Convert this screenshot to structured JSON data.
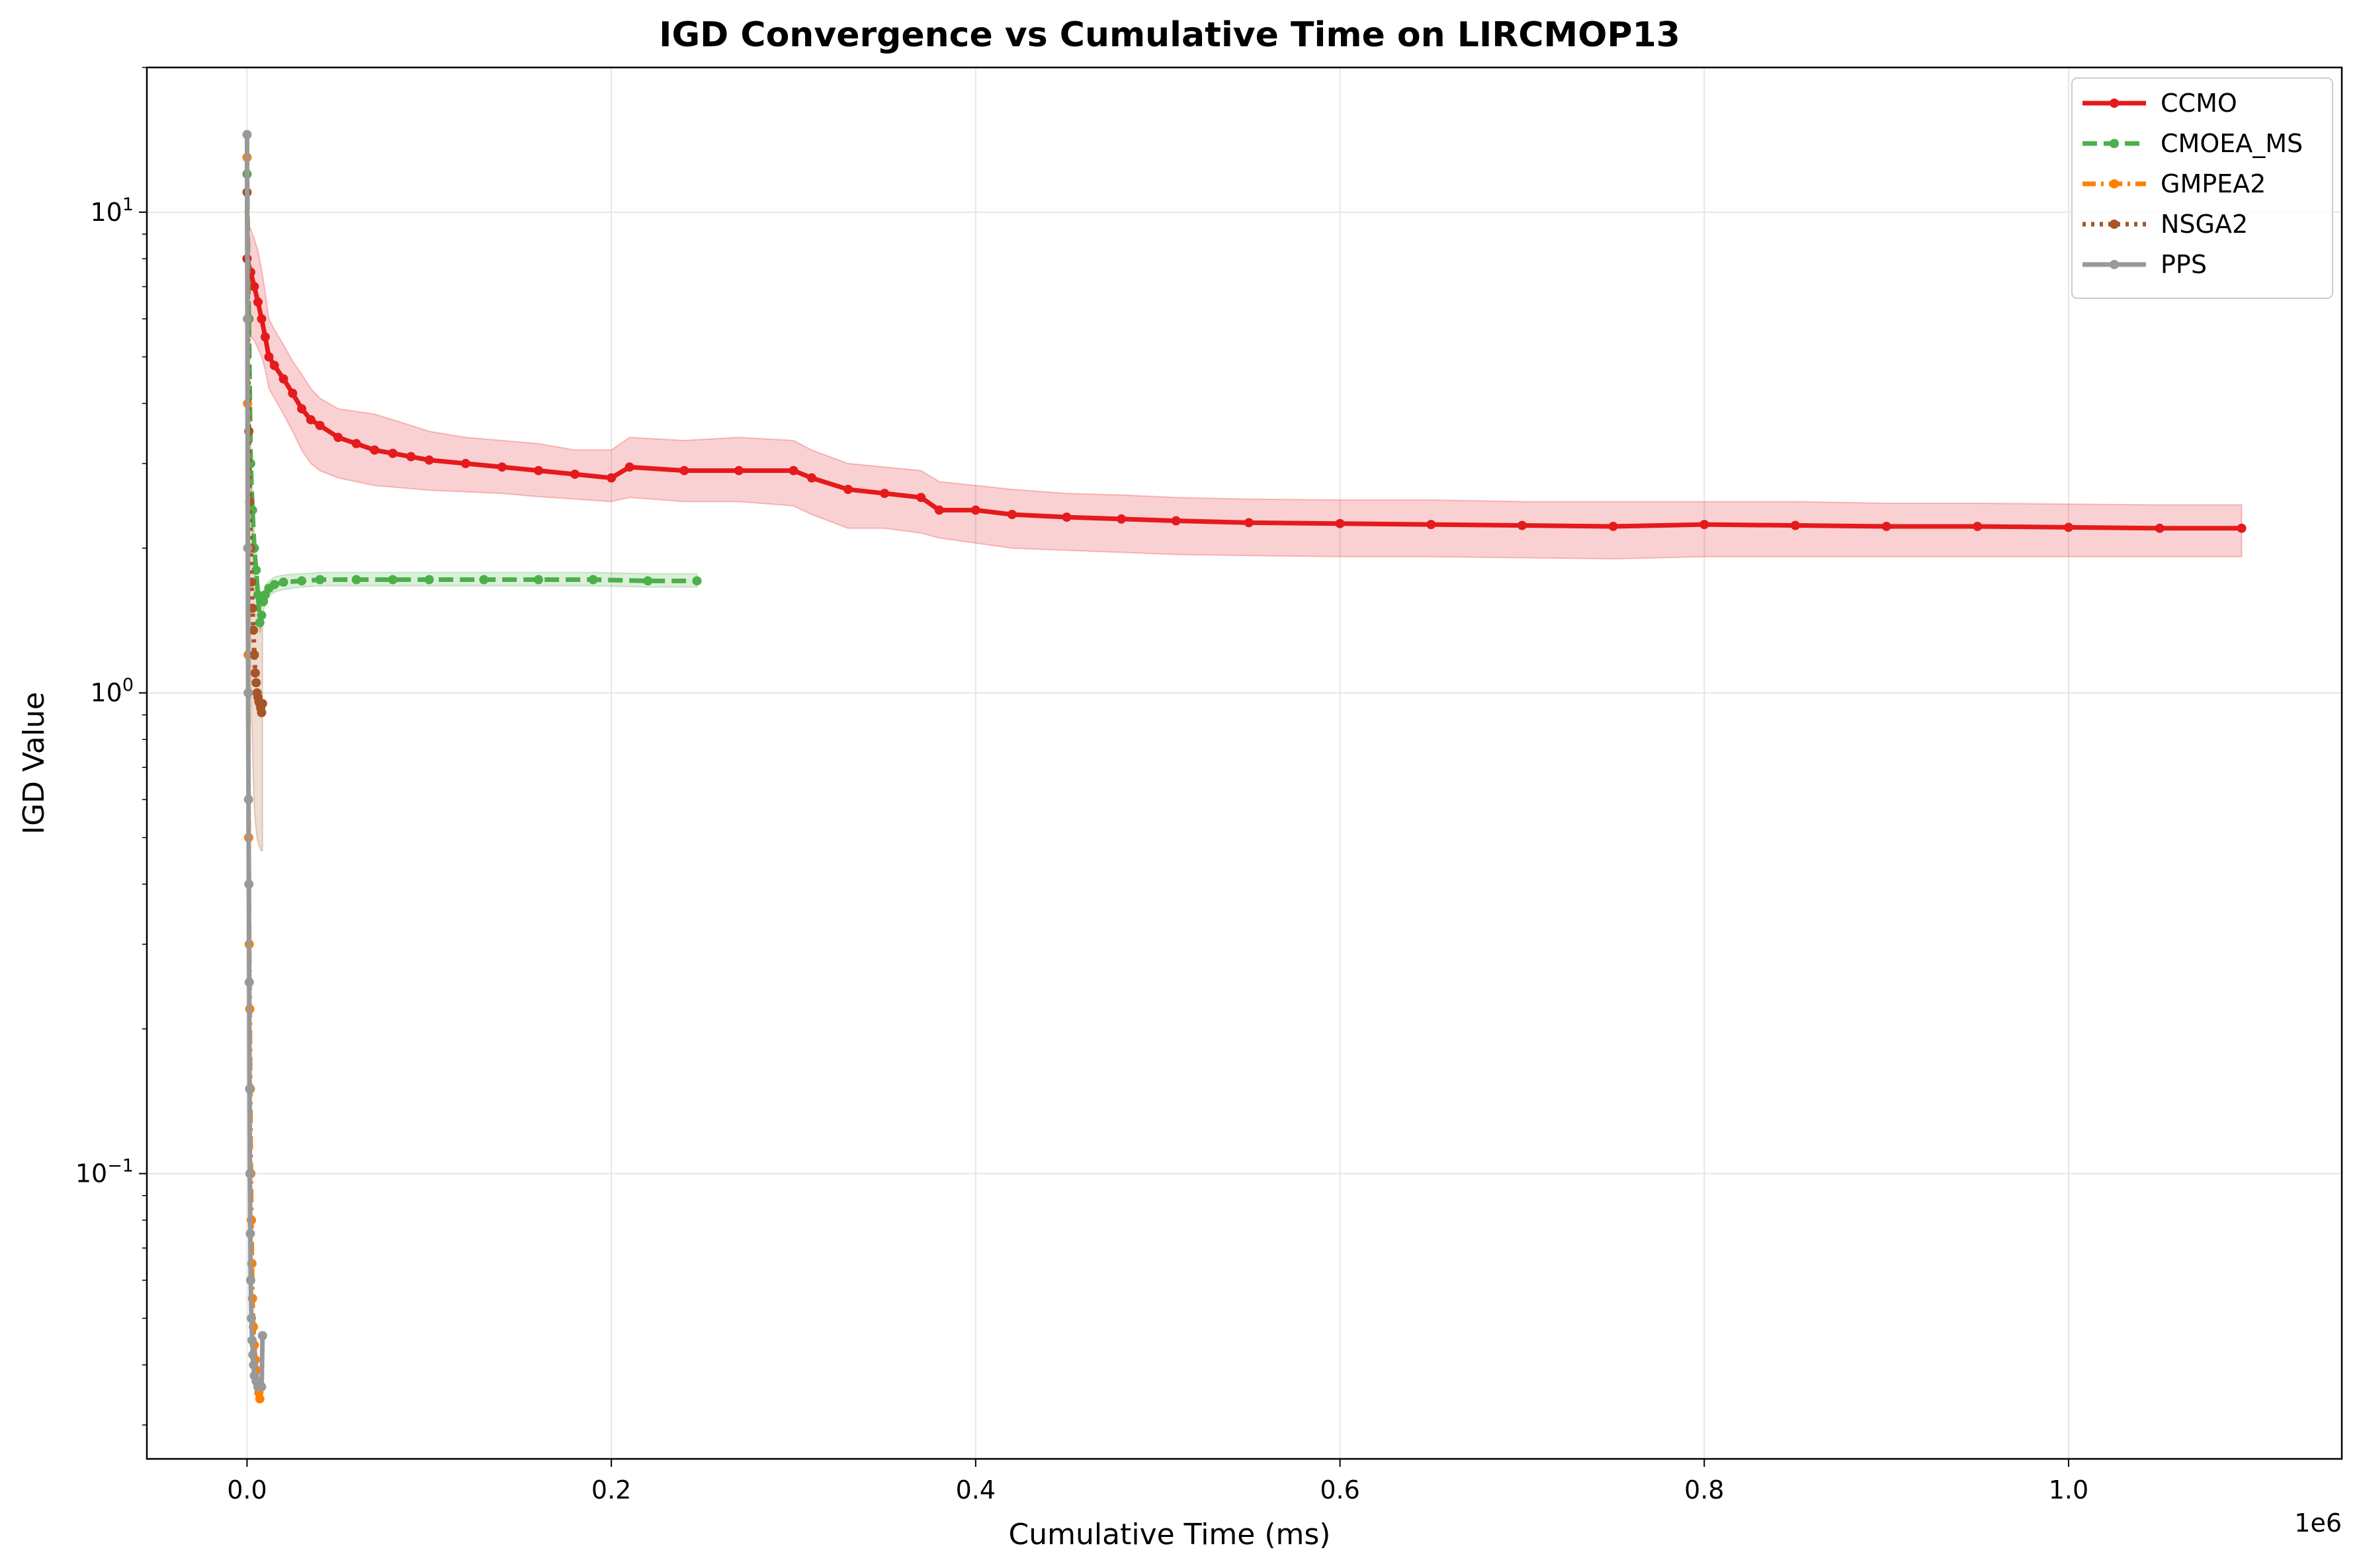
{
  "chart_data": {
    "type": "line",
    "title": "IGD Convergence vs Cumulative Time on LIRCMOP13",
    "xlabel": "Cumulative Time (ms)",
    "ylabel": "IGD Value",
    "x_offset_label": "1e6",
    "x_scale_factor": 1000000,
    "xlim": [
      -55000,
      1150000
    ],
    "ylim": [
      0.0255,
      20
    ],
    "yscale": "log",
    "grid": true,
    "legend_placement": "top-right",
    "x_ticks": [
      {
        "value": 0,
        "label": "0.0"
      },
      {
        "value": 200000,
        "label": "0.2"
      },
      {
        "value": 400000,
        "label": "0.4"
      },
      {
        "value": 600000,
        "label": "0.6"
      },
      {
        "value": 800000,
        "label": "0.8"
      },
      {
        "value": 1000000,
        "label": "1.0"
      }
    ],
    "y_ticks": [
      {
        "value": 0.1,
        "base": "10",
        "exp": "−1"
      },
      {
        "value": 1,
        "base": "10",
        "exp": "0"
      },
      {
        "value": 10,
        "base": "10",
        "exp": "1"
      }
    ],
    "series": [
      {
        "name": "CCMO",
        "color": "#e41a1c",
        "dash": "solid",
        "x": [
          0,
          2000,
          4000,
          6000,
          8000,
          10000,
          12000,
          15000,
          20000,
          25000,
          30000,
          35000,
          40000,
          50000,
          60000,
          70000,
          80000,
          90000,
          100000,
          120000,
          140000,
          160000,
          180000,
          200000,
          210000,
          240000,
          270000,
          300000,
          310000,
          330000,
          350000,
          370000,
          380000,
          400000,
          420000,
          450000,
          480000,
          510000,
          550000,
          600000,
          650000,
          700000,
          750000,
          800000,
          850000,
          900000,
          950000,
          1000000,
          1050000,
          1095000
        ],
        "y": [
          8.0,
          7.5,
          7.0,
          6.5,
          6.0,
          5.5,
          5.0,
          4.8,
          4.5,
          4.2,
          3.9,
          3.7,
          3.6,
          3.4,
          3.3,
          3.2,
          3.15,
          3.1,
          3.05,
          3.0,
          2.95,
          2.9,
          2.85,
          2.8,
          2.95,
          2.9,
          2.9,
          2.9,
          2.8,
          2.65,
          2.6,
          2.55,
          2.4,
          2.4,
          2.35,
          2.32,
          2.3,
          2.28,
          2.26,
          2.25,
          2.24,
          2.23,
          2.22,
          2.24,
          2.23,
          2.22,
          2.22,
          2.21,
          2.2,
          2.2
        ],
        "band_lower": [
          5.5,
          5.5,
          5.4,
          5.2,
          5.0,
          4.7,
          4.3,
          4.1,
          3.8,
          3.5,
          3.2,
          3.0,
          2.9,
          2.8,
          2.75,
          2.7,
          2.68,
          2.66,
          2.64,
          2.62,
          2.6,
          2.56,
          2.53,
          2.5,
          2.55,
          2.5,
          2.5,
          2.45,
          2.35,
          2.2,
          2.2,
          2.15,
          2.1,
          2.05,
          2.0,
          1.98,
          1.96,
          1.94,
          1.93,
          1.92,
          1.92,
          1.91,
          1.9,
          1.92,
          1.92,
          1.92,
          1.92,
          1.92,
          1.92,
          1.92
        ],
        "band_upper": [
          9.5,
          9.2,
          8.8,
          8.3,
          7.6,
          6.8,
          6.0,
          5.7,
          5.3,
          4.9,
          4.6,
          4.3,
          4.1,
          3.9,
          3.85,
          3.8,
          3.7,
          3.6,
          3.5,
          3.4,
          3.35,
          3.3,
          3.2,
          3.2,
          3.4,
          3.35,
          3.4,
          3.35,
          3.2,
          3.0,
          2.95,
          2.9,
          2.75,
          2.7,
          2.65,
          2.6,
          2.58,
          2.55,
          2.53,
          2.52,
          2.52,
          2.5,
          2.5,
          2.5,
          2.5,
          2.48,
          2.48,
          2.47,
          2.46,
          2.46
        ]
      },
      {
        "name": "CMOEA_MS",
        "color": "#4daf4a",
        "dash": "dashed",
        "x": [
          0,
          1000,
          2000,
          3000,
          4000,
          5000,
          6000,
          7000,
          8000,
          9000,
          10000,
          12000,
          15000,
          20000,
          30000,
          40000,
          60000,
          80000,
          100000,
          130000,
          160000,
          190000,
          220000,
          247000
        ],
        "y": [
          12.0,
          6.0,
          3.0,
          2.4,
          2.0,
          1.8,
          1.6,
          1.4,
          1.45,
          1.55,
          1.6,
          1.65,
          1.68,
          1.7,
          1.71,
          1.72,
          1.72,
          1.72,
          1.72,
          1.72,
          1.72,
          1.72,
          1.71,
          1.71
        ],
        "band_lower": [
          11.0,
          5.4,
          2.7,
          2.2,
          1.85,
          1.68,
          1.5,
          1.33,
          1.38,
          1.48,
          1.54,
          1.59,
          1.62,
          1.64,
          1.66,
          1.67,
          1.67,
          1.67,
          1.67,
          1.67,
          1.67,
          1.67,
          1.66,
          1.66
        ],
        "band_upper": [
          13.0,
          6.6,
          3.3,
          2.6,
          2.15,
          1.93,
          1.72,
          1.48,
          1.52,
          1.62,
          1.67,
          1.71,
          1.74,
          1.76,
          1.77,
          1.78,
          1.78,
          1.78,
          1.78,
          1.78,
          1.78,
          1.78,
          1.77,
          1.77
        ]
      },
      {
        "name": "GMPEA2",
        "color": "#ff7f00",
        "dash": "dashdot",
        "x": [
          0,
          300,
          600,
          900,
          1200,
          1500,
          1800,
          2100,
          2400,
          2700,
          3000,
          3500,
          4000,
          4500,
          5000,
          5500,
          6000,
          6500,
          7000
        ],
        "y": [
          13.0,
          4.0,
          1.2,
          0.5,
          0.3,
          0.22,
          0.15,
          0.1,
          0.08,
          0.065,
          0.055,
          0.048,
          0.044,
          0.041,
          0.039,
          0.037,
          0.036,
          0.035,
          0.034
        ]
      },
      {
        "name": "NSGA2",
        "color": "#a65628",
        "dash": "dotted",
        "x": [
          0,
          500,
          1000,
          1500,
          2000,
          2500,
          3000,
          3500,
          4000,
          4500,
          5000,
          5500,
          6000,
          6500,
          7000,
          7500,
          8000,
          8500
        ],
        "y": [
          11.0,
          6.0,
          3.5,
          2.5,
          2.0,
          1.7,
          1.5,
          1.35,
          1.2,
          1.1,
          1.05,
          1.0,
          0.98,
          0.96,
          0.95,
          0.93,
          0.91,
          0.95
        ],
        "band_lower": [
          10.0,
          5.0,
          2.5,
          1.6,
          1.2,
          0.9,
          0.75,
          0.65,
          0.58,
          0.54,
          0.52,
          0.5,
          0.49,
          0.48,
          0.48,
          0.47,
          0.47,
          0.47
        ],
        "band_upper": [
          12.0,
          7.0,
          4.5,
          3.4,
          2.8,
          2.5,
          2.25,
          2.05,
          1.85,
          1.7,
          1.6,
          1.55,
          1.5,
          1.48,
          1.46,
          1.44,
          1.42,
          1.42
        ]
      },
      {
        "name": "PPS",
        "color": "#999999",
        "dash": "solid",
        "x": [
          0,
          200,
          400,
          600,
          800,
          1000,
          1200,
          1400,
          1600,
          1800,
          2000,
          2400,
          2800,
          3200,
          3600,
          4000,
          5000,
          6000,
          7000,
          8000,
          8500
        ],
        "y": [
          14.5,
          6.0,
          2.0,
          1.0,
          0.6,
          0.4,
          0.25,
          0.15,
          0.1,
          0.075,
          0.06,
          0.05,
          0.045,
          0.042,
          0.04,
          0.038,
          0.037,
          0.036,
          0.036,
          0.036,
          0.046
        ]
      }
    ]
  }
}
